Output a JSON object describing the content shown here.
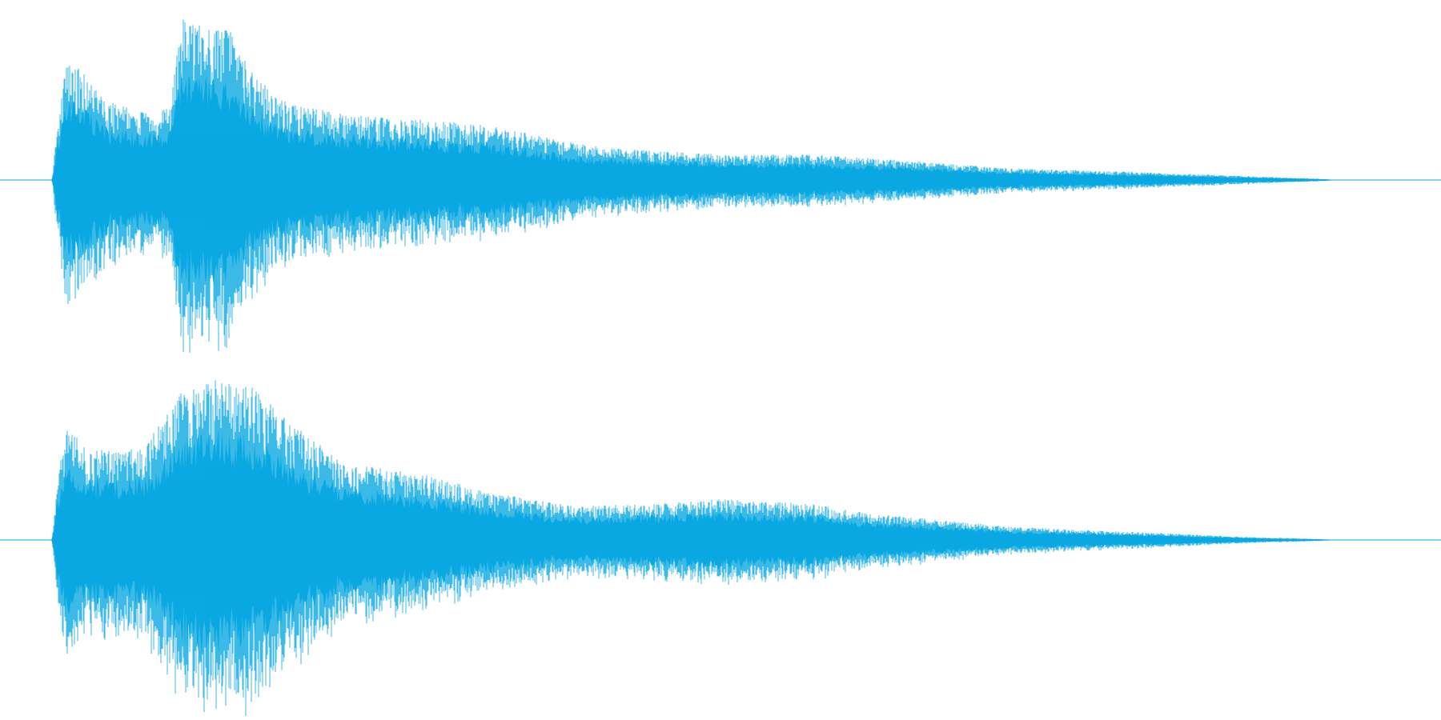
{
  "waveform": {
    "color": "#0aa9e2",
    "channel_count": 2,
    "channels": [
      {
        "name": "",
        "envelope": [
          [
            0.0,
            0.0
          ],
          [
            0.036,
            0.0
          ],
          [
            0.04,
            0.34
          ],
          [
            0.046,
            0.72
          ],
          [
            0.052,
            0.68
          ],
          [
            0.06,
            0.62
          ],
          [
            0.072,
            0.47
          ],
          [
            0.1,
            0.4
          ],
          [
            0.118,
            0.42
          ],
          [
            0.126,
            0.95
          ],
          [
            0.145,
            0.9
          ],
          [
            0.16,
            0.88
          ],
          [
            0.176,
            0.62
          ],
          [
            0.2,
            0.45
          ],
          [
            0.24,
            0.39
          ],
          [
            0.3,
            0.35
          ],
          [
            0.34,
            0.32
          ],
          [
            0.38,
            0.25
          ],
          [
            0.42,
            0.19
          ],
          [
            0.5,
            0.15
          ],
          [
            0.56,
            0.15
          ],
          [
            0.62,
            0.12
          ],
          [
            0.7,
            0.07
          ],
          [
            0.78,
            0.05
          ],
          [
            0.86,
            0.025
          ],
          [
            0.915,
            0.008
          ],
          [
            0.93,
            0.0
          ],
          [
            1.0,
            0.0
          ]
        ]
      },
      {
        "name": "",
        "envelope": [
          [
            0.0,
            0.0
          ],
          [
            0.036,
            0.0
          ],
          [
            0.04,
            0.36
          ],
          [
            0.046,
            0.68
          ],
          [
            0.06,
            0.55
          ],
          [
            0.08,
            0.52
          ],
          [
            0.1,
            0.55
          ],
          [
            0.126,
            0.88
          ],
          [
            0.15,
            0.95
          ],
          [
            0.176,
            0.9
          ],
          [
            0.2,
            0.7
          ],
          [
            0.24,
            0.45
          ],
          [
            0.3,
            0.38
          ],
          [
            0.34,
            0.28
          ],
          [
            0.4,
            0.2
          ],
          [
            0.44,
            0.21
          ],
          [
            0.5,
            0.24
          ],
          [
            0.56,
            0.22
          ],
          [
            0.6,
            0.16
          ],
          [
            0.7,
            0.08
          ],
          [
            0.78,
            0.05
          ],
          [
            0.86,
            0.02
          ],
          [
            0.915,
            0.006
          ],
          [
            0.93,
            0.0
          ],
          [
            1.0,
            0.0
          ]
        ]
      }
    ]
  }
}
